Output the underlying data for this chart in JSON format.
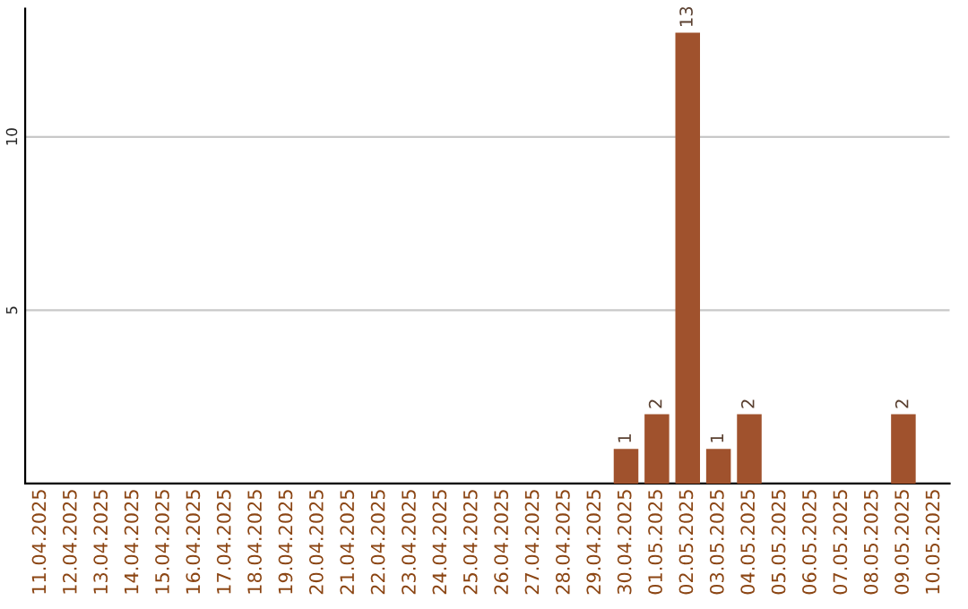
{
  "chart_data": {
    "type": "bar",
    "categories": [
      "11.04.2025",
      "12.04.2025",
      "13.04.2025",
      "14.04.2025",
      "15.04.2025",
      "16.04.2025",
      "17.04.2025",
      "18.04.2025",
      "19.04.2025",
      "20.04.2025",
      "21.04.2025",
      "22.04.2025",
      "23.04.2025",
      "24.04.2025",
      "25.04.2025",
      "26.04.2025",
      "27.04.2025",
      "28.04.2025",
      "29.04.2025",
      "30.04.2025",
      "01.05.2025",
      "02.05.2025",
      "03.05.2025",
      "04.05.2025",
      "05.05.2025",
      "06.05.2025",
      "07.05.2025",
      "08.05.2025",
      "09.05.2025",
      "10.05.2025"
    ],
    "values": [
      0,
      0,
      0,
      0,
      0,
      0,
      0,
      0,
      0,
      0,
      0,
      0,
      0,
      0,
      0,
      0,
      0,
      0,
      0,
      1,
      2,
      13,
      1,
      2,
      0,
      0,
      0,
      0,
      2,
      0
    ],
    "value_labels": [
      null,
      null,
      null,
      null,
      null,
      null,
      null,
      null,
      null,
      null,
      null,
      null,
      null,
      null,
      null,
      null,
      null,
      null,
      null,
      "1",
      "2",
      "13",
      "1",
      "2",
      null,
      null,
      null,
      null,
      "2",
      null
    ],
    "color": "#a0522d",
    "ylim": [
      0,
      13.7
    ],
    "yticks": [
      {
        "value": 0,
        "label": null
      },
      5,
      10
    ],
    "grid": "y",
    "legend": false
  }
}
